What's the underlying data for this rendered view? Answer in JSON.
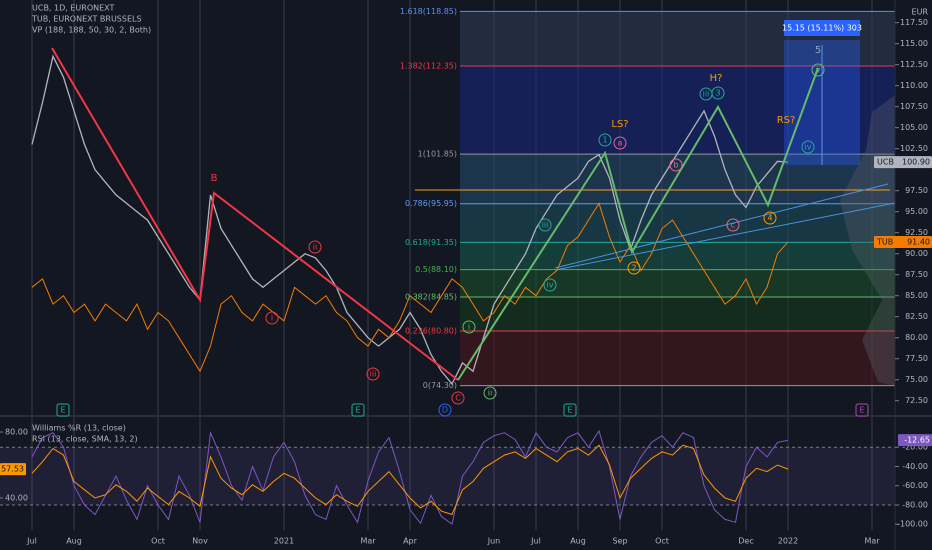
{
  "chart_data": [
    {
      "type": "line",
      "title": "UCB, 1D, EURONEXT",
      "overlays": [
        "TUB, EURONEXT BRUSSELS",
        "VP (188, 188, 50, 30, 2, Both)"
      ],
      "currency": "EUR",
      "measure": "15.15 (15.11%) 303",
      "categories": [
        "Jul",
        null,
        null,
        null,
        "Aug",
        null,
        null,
        null,
        null,
        null,
        null,
        null,
        "Oct",
        null,
        null,
        null,
        "Nov",
        null,
        null,
        null,
        null,
        null,
        null,
        null,
        "2021",
        null,
        null,
        null,
        null,
        null,
        null,
        null,
        "Mar",
        null,
        null,
        null,
        "Apr",
        null,
        null,
        null,
        null,
        null,
        null,
        null,
        "Jun",
        null,
        null,
        null,
        "Jul",
        null,
        null,
        null,
        "Aug",
        null,
        null,
        null,
        "Sep",
        null,
        null,
        null,
        "Oct",
        null,
        null,
        null,
        null,
        null,
        null,
        null,
        "Dec",
        null,
        null,
        null,
        "2022",
        null,
        null,
        null,
        null,
        null,
        null,
        null,
        "Mar"
      ],
      "x_grid": true,
      "ylim": [
        70.8,
        120.2
      ],
      "yticks": [
        {
          "value": 72.5,
          "label": "72.50"
        },
        {
          "value": 75,
          "label": "75.00"
        },
        {
          "value": 77.5,
          "label": "77.50"
        },
        {
          "value": 80,
          "label": "80.00"
        },
        {
          "value": 82.5,
          "label": "82.50"
        },
        {
          "value": 85,
          "label": "85.00"
        },
        {
          "value": 87.5,
          "label": "87.50"
        },
        {
          "value": 90,
          "label": "90.00"
        },
        {
          "value": 92.5,
          "label": "92.50"
        },
        {
          "value": 95,
          "label": "95.00"
        },
        {
          "value": 97.5,
          "label": "97.50"
        },
        {
          "value": 102.5,
          "label": "102.50"
        },
        {
          "value": 105,
          "label": "105.00"
        },
        {
          "value": 107.5,
          "label": "107.50"
        },
        {
          "value": 110,
          "label": "110.00"
        },
        {
          "value": 112.5,
          "label": "112.50"
        },
        {
          "value": 115,
          "label": "115.00"
        },
        {
          "value": 117.5,
          "label": "117.50"
        }
      ],
      "series": [
        {
          "name": "UCB",
          "color": "#b2b5be",
          "last_label": "100.90",
          "values": [
            103,
            108,
            113.5,
            111,
            107,
            103,
            100,
            98.5,
            97,
            96,
            95,
            94,
            92,
            90,
            88,
            86,
            84.5,
            97,
            93,
            91,
            89,
            87,
            86,
            87,
            88,
            89,
            90,
            89.5,
            88,
            86,
            83,
            81.5,
            80,
            79,
            80,
            81,
            83,
            81,
            78,
            76,
            74.5,
            77,
            76,
            80,
            84,
            86,
            88,
            90,
            93,
            95,
            97,
            98,
            99,
            101,
            101.8,
            99,
            94,
            90.5,
            94,
            97,
            99,
            101,
            103,
            105,
            107,
            104,
            100,
            97,
            95.5,
            98,
            99.5,
            101,
            100.9,
            null,
            null,
            null,
            null,
            null,
            null,
            null,
            null
          ]
        },
        {
          "name": "TUB",
          "color": "#f57c00",
          "last_label": "91.40",
          "values": [
            86,
            87,
            84,
            85,
            83,
            84,
            82,
            84,
            83,
            82,
            84,
            81,
            83,
            82,
            80,
            78,
            76,
            79,
            84,
            85,
            83,
            82,
            84,
            83,
            82,
            86,
            85,
            84,
            85,
            83,
            82,
            80,
            79,
            81,
            80,
            82,
            85,
            84,
            83,
            85,
            87,
            86,
            84,
            82,
            83,
            85,
            84,
            86,
            85,
            87,
            88,
            91,
            92,
            94,
            96,
            92,
            89,
            91,
            88,
            90,
            93,
            94,
            92,
            90,
            88,
            86,
            84,
            85,
            87,
            84,
            86,
            90,
            91.4,
            null,
            null,
            null,
            null,
            null,
            null,
            null,
            null
          ]
        }
      ],
      "fib_levels": [
        {
          "label": "1.618(118.85)",
          "value": 118.85,
          "color": "#5b8def",
          "fill": "#2c3a55"
        },
        {
          "label": "1.382(112.35)",
          "value": 112.35,
          "color": "#f23645",
          "fill": "#16267a"
        },
        {
          "label": "1(101.85)",
          "value": 101.85,
          "color": "#9598a1",
          "fill": "#24476a"
        },
        {
          "label": "0.786(95.95)",
          "value": 95.95,
          "color": "#5b9cf6",
          "fill": "#1a4c5c"
        },
        {
          "label": "0.618(91.35)",
          "value": 91.35,
          "color": "#22ab94",
          "fill": "#17564a"
        },
        {
          "label": "0.5(88.10)",
          "value": 88.1,
          "color": "#4caf50",
          "fill": "#1b4f2c"
        },
        {
          "label": "0.382(84.85)",
          "value": 84.85,
          "color": "#66bb6a",
          "fill": "#163a20"
        },
        {
          "label": "0.236(80.80)",
          "value": 80.8,
          "color": "#f23645",
          "fill": "#4a171c"
        },
        {
          "label": "0(74.30)",
          "value": 74.3,
          "color": "#9598a1"
        }
      ],
      "annotations": [
        "B",
        "LS?",
        "H?",
        "RS?",
        "5",
        "ii",
        "i",
        "iii",
        "C",
        "D",
        "i",
        "ii",
        "iii",
        "iv",
        "1",
        "2",
        "3",
        "4",
        "a",
        "b",
        "c",
        "iii",
        "iv",
        "v"
      ],
      "events": [
        "E",
        "E",
        "E",
        "E"
      ]
    },
    {
      "type": "line",
      "ylim": [
        20.6,
        87.3
      ],
      "yticks": [
        {
          "value": 40,
          "label": "40.00"
        },
        {
          "value": 80,
          "label": "80.00"
        }
      ],
      "y2lim": [
        -106,
        8.3
      ],
      "y2ticks": [
        {
          "value": -20,
          "label": "-20.00"
        },
        {
          "value": -40,
          "label": "-40.00"
        },
        {
          "value": -60,
          "label": "-60.00"
        },
        {
          "value": -80,
          "label": "-80.00"
        },
        {
          "value": -100,
          "label": "-100.00"
        }
      ],
      "band": [
        -80,
        -20
      ],
      "series": [
        {
          "name": "Williams %R (13, close)",
          "color": "#7e57c2",
          "axis": "y2",
          "values": [
            -30,
            -10,
            -5,
            -20,
            -60,
            -80,
            -90,
            -70,
            -50,
            -75,
            -95,
            -60,
            -80,
            -95,
            -50,
            -70,
            -98,
            -5,
            -30,
            -60,
            -75,
            -40,
            -65,
            -30,
            -15,
            -35,
            -70,
            -90,
            -95,
            -60,
            -80,
            -98,
            -55,
            -25,
            -10,
            -45,
            -85,
            -99,
            -70,
            -92,
            -100,
            -50,
            -35,
            -15,
            -8,
            -5,
            -12,
            -30,
            -5,
            -20,
            -25,
            -10,
            -5,
            -20,
            -3,
            -40,
            -95,
            -50,
            -30,
            -15,
            -8,
            -20,
            -5,
            -10,
            -60,
            -85,
            -95,
            -98,
            -40,
            -20,
            -30,
            -15,
            -12.65,
            null,
            null,
            null,
            null,
            null,
            null,
            null,
            null
          ]
        },
        {
          "name": "RSI (13, close, SMA, 13, 2)",
          "color": "#ff9800",
          "values": [
            55,
            62,
            70,
            66,
            50,
            45,
            40,
            42,
            48,
            44,
            38,
            46,
            41,
            36,
            44,
            40,
            35,
            65,
            52,
            46,
            42,
            48,
            44,
            50,
            55,
            52,
            46,
            40,
            36,
            42,
            38,
            35,
            44,
            50,
            56,
            48,
            40,
            34,
            38,
            32,
            30,
            45,
            50,
            58,
            62,
            66,
            68,
            64,
            70,
            66,
            62,
            68,
            70,
            66,
            72,
            60,
            40,
            52,
            58,
            64,
            68,
            66,
            72,
            70,
            54,
            46,
            40,
            38,
            52,
            58,
            56,
            60,
            57.53,
            null,
            null,
            null,
            null,
            null,
            null,
            null,
            null
          ]
        }
      ]
    }
  ]
}
